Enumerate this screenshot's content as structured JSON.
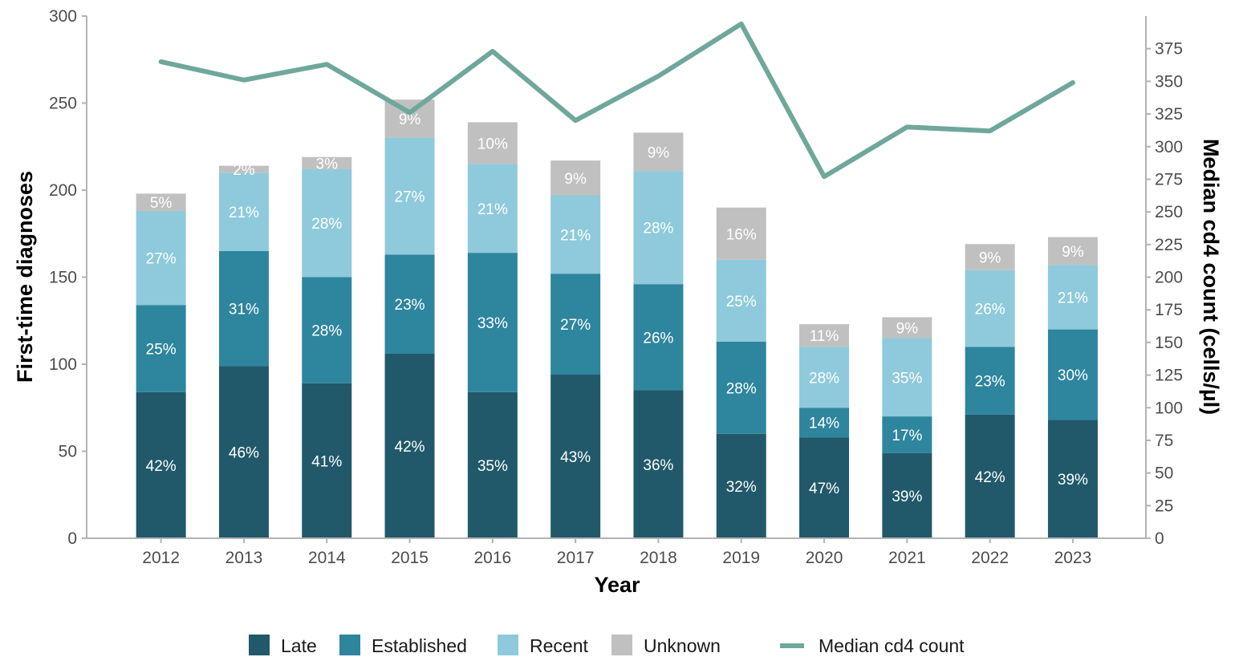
{
  "chart_data": {
    "type": "bar",
    "stacked": true,
    "categories": [
      "2012",
      "2013",
      "2014",
      "2015",
      "2016",
      "2017",
      "2018",
      "2019",
      "2020",
      "2021",
      "2022",
      "2023"
    ],
    "series": [
      {
        "name": "Late",
        "color": "#21596a",
        "values": [
          84,
          99,
          89,
          106,
          84,
          94,
          85,
          60,
          58,
          49,
          71,
          68
        ],
        "labels": [
          "42%",
          "46%",
          "41%",
          "42%",
          "35%",
          "43%",
          "36%",
          "32%",
          "47%",
          "39%",
          "42%",
          "39%"
        ]
      },
      {
        "name": "Established",
        "color": "#2e859e",
        "values": [
          50,
          66,
          61,
          57,
          80,
          58,
          61,
          53,
          17,
          21,
          39,
          52
        ],
        "labels": [
          "25%",
          "31%",
          "28%",
          "23%",
          "33%",
          "27%",
          "26%",
          "28%",
          "14%",
          "17%",
          "23%",
          "30%"
        ]
      },
      {
        "name": "Recent",
        "color": "#8ecadb",
        "values": [
          54,
          45,
          62,
          67,
          51,
          45,
          65,
          47,
          35,
          45,
          44,
          37
        ],
        "labels": [
          "27%",
          "21%",
          "28%",
          "27%",
          "21%",
          "21%",
          "28%",
          "25%",
          "28%",
          "35%",
          "26%",
          "21%"
        ]
      },
      {
        "name": "Unknown",
        "color": "#c0c0c0",
        "values": [
          10,
          4,
          7,
          22,
          24,
          20,
          22,
          30,
          13,
          12,
          15,
          16
        ],
        "labels": [
          "5%",
          "2%",
          "3%",
          "9%",
          "10%",
          "9%",
          "9%",
          "16%",
          "11%",
          "9%",
          "9%",
          "9%"
        ]
      }
    ],
    "line_series": {
      "name": "Median cd4 count",
      "color": "#6fa79b",
      "axis": "right",
      "values": [
        365,
        351,
        363,
        326,
        373,
        320,
        354,
        394,
        277,
        315,
        312,
        349
      ]
    },
    "xlabel": "Year",
    "ylabel": "First-time diagnoses",
    "y2label": "Median cd4 count (cells/µl)",
    "ylim": [
      0,
      300
    ],
    "y2lim": [
      0,
      400
    ],
    "yticks": [
      "0",
      "50",
      "100",
      "150",
      "200",
      "250",
      "300"
    ],
    "y2ticks": [
      "0",
      "25",
      "50",
      "75",
      "100",
      "125",
      "150",
      "175",
      "200",
      "225",
      "250",
      "275",
      "300",
      "325",
      "350",
      "375"
    ],
    "grid": false,
    "legend_position": "bottom"
  }
}
